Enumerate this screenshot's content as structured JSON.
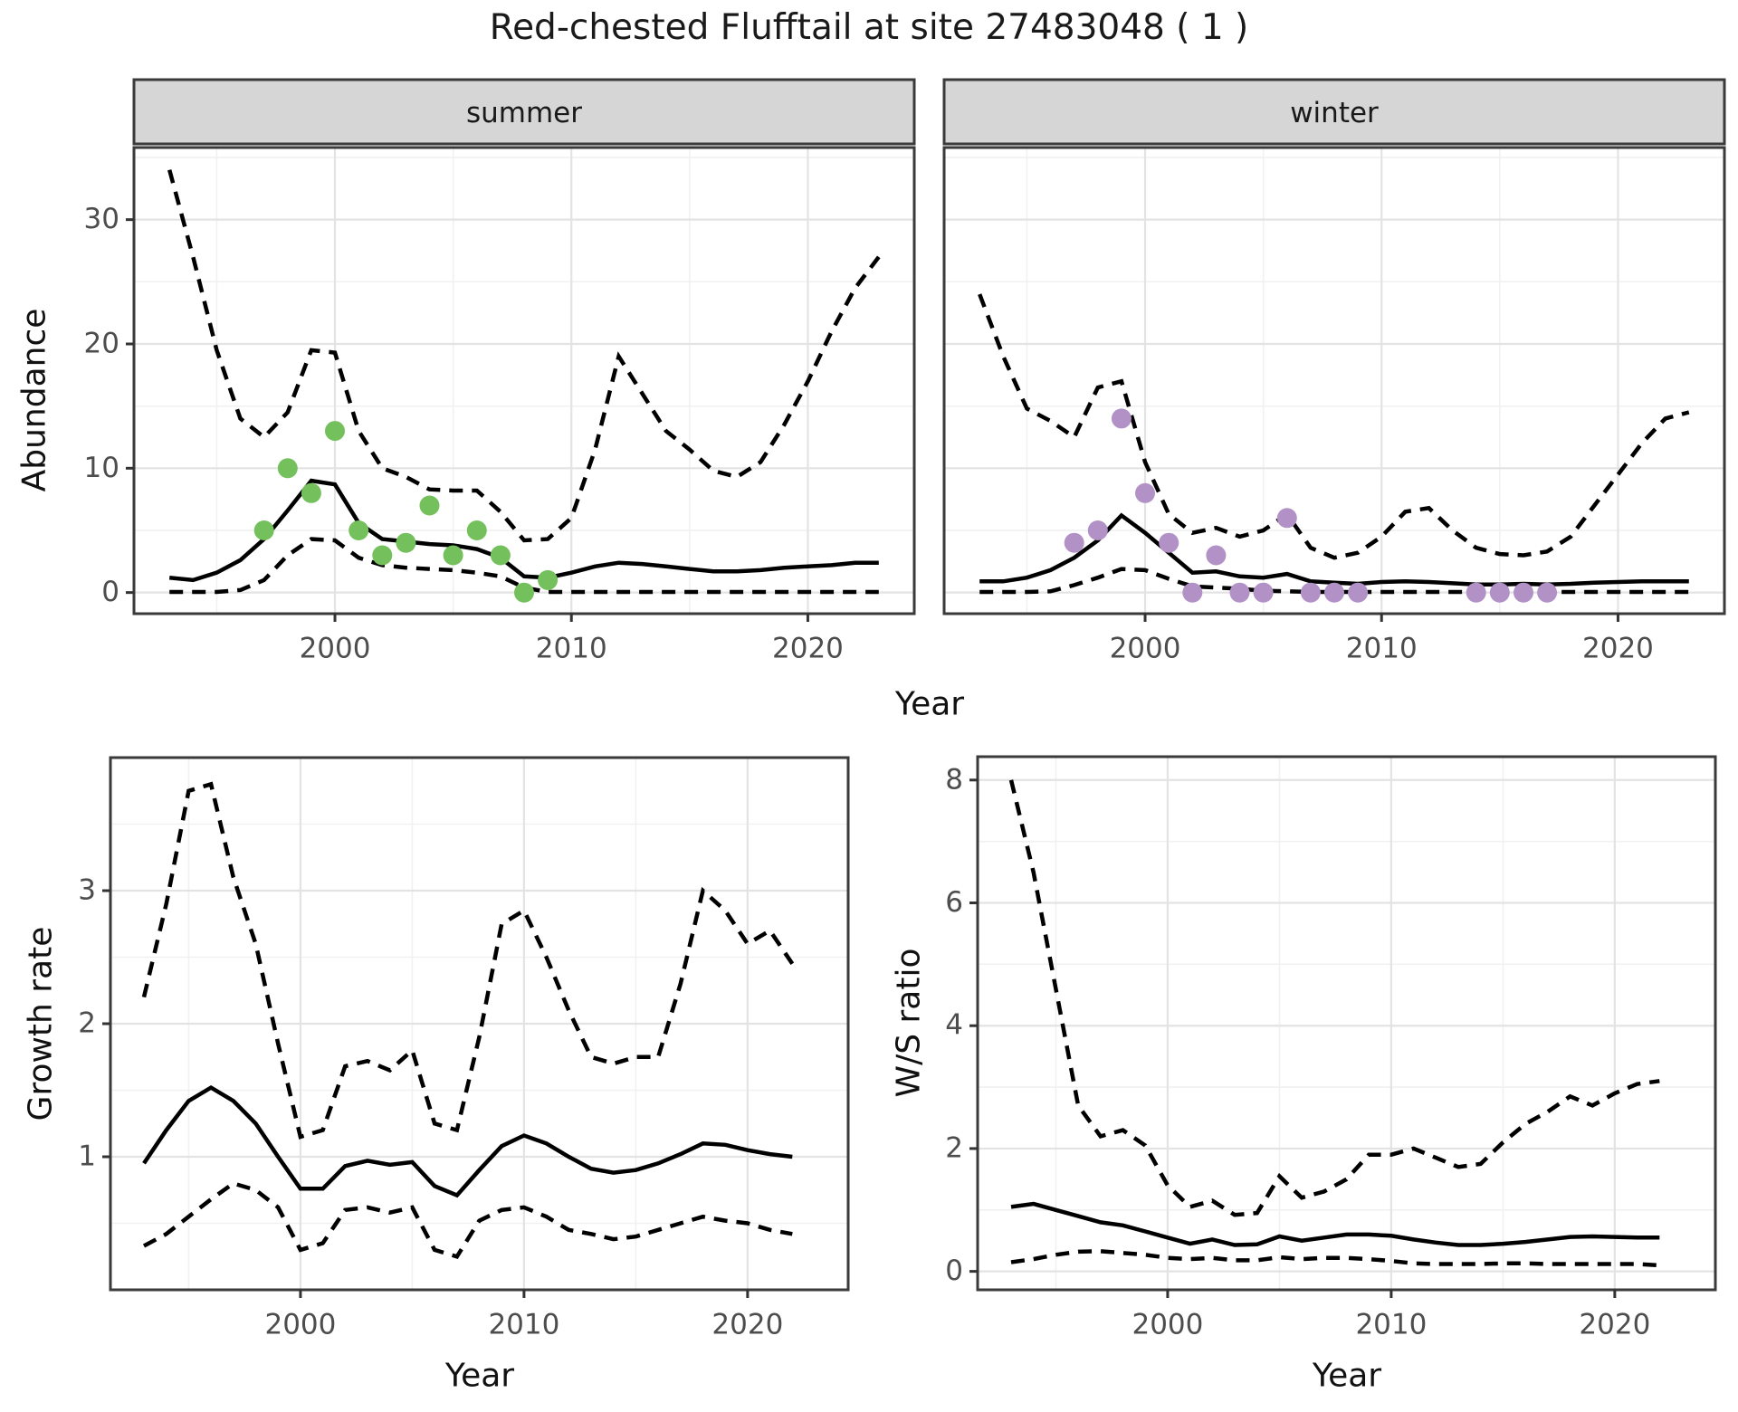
{
  "title": "Red-chested Flufftail at site 27483048 ( 1 )",
  "colors": {
    "summer_points": "#74C05C",
    "winter_points": "#B292C6",
    "line": "#000000",
    "grid_major": "#E3E3E3",
    "grid_minor": "#F1F1F1",
    "panel_border": "#3A3A3A",
    "strip_bg": "#D6D6D6",
    "strip_border": "#3A3A3A",
    "tick_label": "#4D4D4D",
    "tick_mark": "#333333",
    "panel_bg": "#FFFFFF"
  },
  "chart_data": [
    {
      "id": "abundance_facets",
      "type": "line",
      "xlabel": "Year",
      "ylabel": "Abundance",
      "xticks": [
        2000,
        2010,
        2020
      ],
      "x_minor": [
        1995,
        2005,
        2015
      ],
      "yticks": [
        0,
        10,
        20,
        30
      ],
      "y_minor": [
        5,
        15,
        25,
        35
      ],
      "xlim": [
        1991.5,
        2024.5
      ],
      "ylim": [
        0,
        35
      ],
      "grid": true,
      "legend": "none",
      "years": [
        1993,
        1994,
        1995,
        1996,
        1997,
        1998,
        1999,
        2000,
        2001,
        2002,
        2003,
        2004,
        2005,
        2006,
        2007,
        2008,
        2009,
        2010,
        2011,
        2012,
        2013,
        2014,
        2015,
        2016,
        2017,
        2018,
        2019,
        2020,
        2021,
        2022,
        2023
      ],
      "facets": [
        {
          "label": "summer",
          "point_color_key": "summer_points",
          "series": [
            {
              "name": "mean",
              "style": "solid",
              "values": [
                1.2,
                1.0,
                1.6,
                2.6,
                4.3,
                6.6,
                9.0,
                8.7,
                5.6,
                4.3,
                4.1,
                3.9,
                3.8,
                3.5,
                2.8,
                1.3,
                1.2,
                1.6,
                2.1,
                2.4,
                2.3,
                2.1,
                1.9,
                1.7,
                1.7,
                1.8,
                2.0,
                2.1,
                2.2,
                2.4,
                2.4
              ]
            },
            {
              "name": "upper_ci",
              "style": "dashed",
              "values": [
                34,
                27,
                19.5,
                14,
                12.5,
                14.5,
                19.5,
                19.3,
                13,
                10,
                9.3,
                8.3,
                8.2,
                8.2,
                6.5,
                4.2,
                4.3,
                6,
                11.5,
                19,
                16,
                13,
                11.5,
                9.8,
                9.3,
                10.5,
                13.5,
                17,
                21,
                24.5,
                27
              ]
            },
            {
              "name": "lower_ci",
              "style": "dashed",
              "values": [
                0.05,
                0.05,
                0.05,
                0.2,
                1.0,
                3.0,
                4.3,
                4.2,
                2.8,
                2.2,
                2.0,
                1.9,
                1.8,
                1.6,
                1.3,
                0.4,
                0.05,
                0.05,
                0.05,
                0.05,
                0.05,
                0.05,
                0.05,
                0.05,
                0.05,
                0.05,
                0.05,
                0.05,
                0.05,
                0.05,
                0.05
              ]
            }
          ],
          "points": {
            "years": [
              1997,
              1998,
              1999,
              2000,
              2001,
              2002,
              2003,
              2004,
              2005,
              2006,
              2007,
              2008,
              2009
            ],
            "values": [
              5,
              10,
              8,
              13,
              5,
              3,
              4,
              7,
              3,
              5,
              3,
              0,
              1
            ]
          }
        },
        {
          "label": "winter",
          "point_color_key": "winter_points",
          "series": [
            {
              "name": "mean",
              "style": "solid",
              "values": [
                0.9,
                0.9,
                1.2,
                1.8,
                2.8,
                4.2,
                6.2,
                4.8,
                3.2,
                1.6,
                1.7,
                1.3,
                1.2,
                1.5,
                0.9,
                0.8,
                0.7,
                0.85,
                0.9,
                0.85,
                0.75,
                0.65,
                0.65,
                0.7,
                0.65,
                0.7,
                0.8,
                0.85,
                0.9,
                0.9,
                0.9
              ]
            },
            {
              "name": "upper_ci",
              "style": "dashed",
              "values": [
                24,
                19,
                14.8,
                13.8,
                12.5,
                16.5,
                17,
                10.5,
                6.3,
                4.8,
                5.2,
                4.5,
                5.0,
                6.3,
                3.6,
                2.8,
                3.2,
                4.5,
                6.5,
                6.8,
                5.0,
                3.6,
                3.1,
                3.0,
                3.3,
                4.5,
                7.0,
                9.5,
                12,
                14,
                14.5
              ]
            },
            {
              "name": "lower_ci",
              "style": "dashed",
              "values": [
                0.05,
                0.05,
                0.05,
                0.1,
                0.6,
                1.2,
                1.9,
                1.8,
                1.1,
                0.5,
                0.4,
                0.3,
                0.15,
                0.1,
                0.05,
                0.05,
                0.05,
                0.05,
                0.05,
                0.05,
                0.05,
                0.05,
                0.05,
                0.05,
                0.05,
                0.05,
                0.05,
                0.05,
                0.05,
                0.05,
                0.05
              ]
            }
          ],
          "points": {
            "years": [
              1997,
              1998,
              1999,
              2000,
              2001,
              2002,
              2003,
              2004,
              2005,
              2006,
              2007,
              2008,
              2009,
              2014,
              2015,
              2016,
              2017
            ],
            "values": [
              4,
              5,
              14,
              8,
              4,
              0,
              3,
              0,
              0,
              6,
              0,
              0,
              0,
              0,
              0,
              0,
              0
            ]
          }
        }
      ]
    },
    {
      "id": "growth_rate",
      "type": "line",
      "xlabel": "Year",
      "ylabel": "Growth rate",
      "xticks": [
        2000,
        2010,
        2020
      ],
      "x_minor": [
        1995,
        2005,
        2015
      ],
      "yticks": [
        1,
        2,
        3
      ],
      "y_minor": [
        0.5,
        1.5,
        2.5,
        3.5
      ],
      "xlim": [
        1991.5,
        2024.5
      ],
      "ylim": [
        0,
        4
      ],
      "grid": true,
      "legend": "none",
      "years": [
        1993,
        1994,
        1995,
        1996,
        1997,
        1998,
        1999,
        2000,
        2001,
        2002,
        2003,
        2004,
        2005,
        2006,
        2007,
        2008,
        2009,
        2010,
        2011,
        2012,
        2013,
        2014,
        2015,
        2016,
        2017,
        2018,
        2019,
        2020,
        2021,
        2022
      ],
      "series": [
        {
          "name": "mean",
          "style": "solid",
          "values": [
            0.95,
            1.2,
            1.42,
            1.52,
            1.42,
            1.25,
            1.0,
            0.76,
            0.76,
            0.93,
            0.97,
            0.94,
            0.96,
            0.78,
            0.71,
            0.9,
            1.08,
            1.16,
            1.1,
            1.0,
            0.91,
            0.88,
            0.9,
            0.95,
            1.02,
            1.1,
            1.09,
            1.05,
            1.02,
            1.0
          ]
        },
        {
          "name": "upper_ci",
          "style": "dashed",
          "values": [
            2.2,
            2.9,
            3.75,
            3.8,
            3.1,
            2.6,
            1.85,
            1.15,
            1.2,
            1.68,
            1.72,
            1.65,
            1.8,
            1.25,
            1.2,
            1.9,
            2.75,
            2.85,
            2.5,
            2.1,
            1.75,
            1.7,
            1.75,
            1.75,
            2.3,
            3.0,
            2.85,
            2.6,
            2.7,
            2.45
          ]
        },
        {
          "name": "lower_ci",
          "style": "dashed",
          "values": [
            0.33,
            0.42,
            0.55,
            0.68,
            0.8,
            0.75,
            0.62,
            0.3,
            0.35,
            0.6,
            0.62,
            0.58,
            0.62,
            0.3,
            0.25,
            0.52,
            0.6,
            0.62,
            0.55,
            0.45,
            0.42,
            0.38,
            0.4,
            0.45,
            0.5,
            0.55,
            0.52,
            0.5,
            0.45,
            0.42
          ]
        }
      ]
    },
    {
      "id": "ws_ratio",
      "type": "line",
      "xlabel": "Year",
      "ylabel": "W/S ratio",
      "xticks": [
        2000,
        2010,
        2020
      ],
      "x_minor": [
        1995,
        2005,
        2015
      ],
      "yticks": [
        0,
        2,
        4,
        6,
        8
      ],
      "y_minor": [
        1,
        3,
        5,
        7
      ],
      "xlim": [
        1991.5,
        2024.5
      ],
      "ylim": [
        0,
        8
      ],
      "grid": true,
      "legend": "none",
      "years": [
        1993,
        1994,
        1995,
        1996,
        1997,
        1998,
        1999,
        2000,
        2001,
        2002,
        2003,
        2004,
        2005,
        2006,
        2007,
        2008,
        2009,
        2010,
        2011,
        2012,
        2013,
        2014,
        2015,
        2016,
        2017,
        2018,
        2019,
        2020,
        2021,
        2022
      ],
      "series": [
        {
          "name": "mean",
          "style": "solid",
          "values": [
            1.05,
            1.1,
            1.0,
            0.9,
            0.8,
            0.75,
            0.65,
            0.55,
            0.45,
            0.52,
            0.43,
            0.44,
            0.57,
            0.5,
            0.55,
            0.6,
            0.6,
            0.58,
            0.52,
            0.47,
            0.43,
            0.43,
            0.45,
            0.48,
            0.52,
            0.56,
            0.57,
            0.56,
            0.55,
            0.55
          ]
        },
        {
          "name": "upper_ci",
          "style": "dashed",
          "values": [
            8.0,
            6.5,
            4.6,
            2.7,
            2.2,
            2.3,
            2.05,
            1.4,
            1.05,
            1.15,
            0.92,
            0.95,
            1.55,
            1.2,
            1.3,
            1.5,
            1.9,
            1.9,
            2.0,
            1.85,
            1.7,
            1.75,
            2.1,
            2.4,
            2.6,
            2.85,
            2.7,
            2.9,
            3.05,
            3.1
          ]
        },
        {
          "name": "lower_ci",
          "style": "dashed",
          "values": [
            0.15,
            0.2,
            0.27,
            0.32,
            0.33,
            0.3,
            0.27,
            0.22,
            0.2,
            0.22,
            0.18,
            0.18,
            0.23,
            0.2,
            0.22,
            0.22,
            0.2,
            0.17,
            0.13,
            0.12,
            0.12,
            0.12,
            0.13,
            0.13,
            0.12,
            0.12,
            0.12,
            0.12,
            0.12,
            0.1
          ]
        }
      ]
    }
  ]
}
